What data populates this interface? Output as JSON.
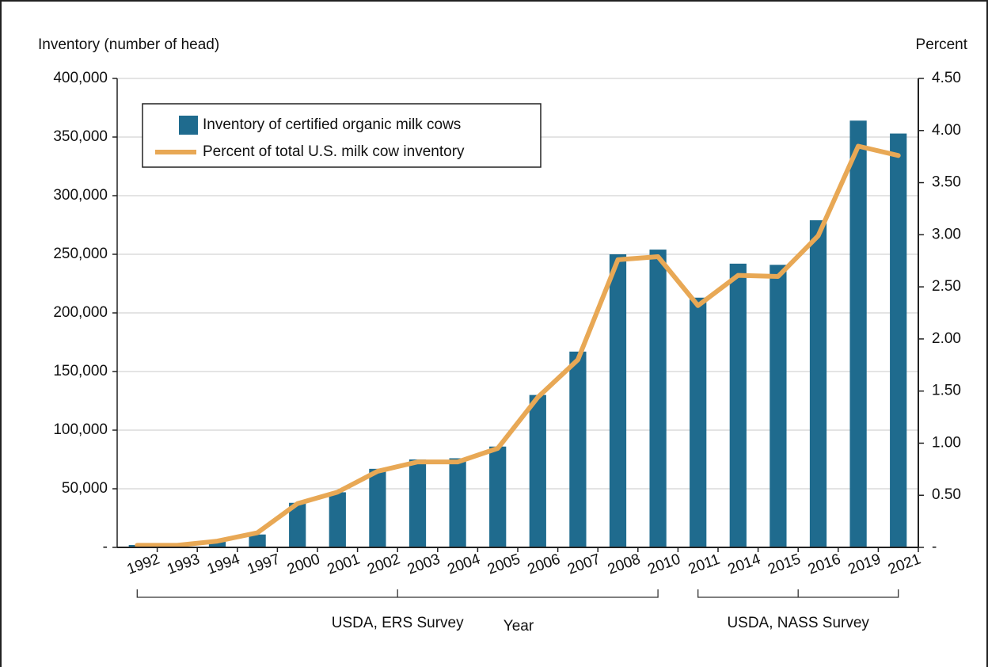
{
  "chart_data": {
    "type": "bar",
    "x_label": "Year",
    "y_label": "Inventory (number of head)",
    "y2_label": "Percent",
    "categories": [
      "1992",
      "1993",
      "1994",
      "1997",
      "2000",
      "2001",
      "2002",
      "2003",
      "2004",
      "2005",
      "2006",
      "2007",
      "2008",
      "2010",
      "2011",
      "2014",
      "2015",
      "2016",
      "2019",
      "2021"
    ],
    "series": [
      {
        "name": "Inventory of certified organic milk cows",
        "type": "bar",
        "color": "#1f6b8e",
        "values": [
          2000,
          2000,
          5000,
          11000,
          38000,
          47000,
          67000,
          75000,
          76000,
          86000,
          130000,
          167000,
          250000,
          254000,
          213000,
          242000,
          241000,
          279000,
          364000,
          353000
        ]
      },
      {
        "name": "Percent of total U.S. milk cow inventory",
        "type": "line",
        "axis": "y2",
        "color": "#e8a855",
        "values": [
          0.02,
          0.02,
          0.06,
          0.14,
          0.42,
          0.53,
          0.73,
          0.82,
          0.82,
          0.95,
          1.44,
          1.8,
          2.76,
          2.79,
          2.32,
          2.61,
          2.6,
          2.99,
          3.85,
          3.76
        ]
      }
    ],
    "ylim": [
      0,
      400000
    ],
    "yticks": [
      {
        "value": 0,
        "label": "-"
      },
      {
        "value": 50000,
        "label": "50,000"
      },
      {
        "value": 100000,
        "label": "100,000"
      },
      {
        "value": 150000,
        "label": "150,000"
      },
      {
        "value": 200000,
        "label": "200,000"
      },
      {
        "value": 250000,
        "label": "250,000"
      },
      {
        "value": 300000,
        "label": "300,000"
      },
      {
        "value": 350000,
        "label": "350,000"
      },
      {
        "value": 400000,
        "label": "400,000"
      }
    ],
    "y2lim": [
      0,
      4.5
    ],
    "y2ticks": [
      {
        "value": 0,
        "label": "-"
      },
      {
        "value": 0.5,
        "label": "0.50"
      },
      {
        "value": 1,
        "label": "1.00"
      },
      {
        "value": 1.5,
        "label": "1.50"
      },
      {
        "value": 2,
        "label": "2.00"
      },
      {
        "value": 2.5,
        "label": "2.50"
      },
      {
        "value": 3,
        "label": "3.00"
      },
      {
        "value": 3.5,
        "label": "3.50"
      },
      {
        "value": 4,
        "label": "4.00"
      },
      {
        "value": 4.5,
        "label": "4.50"
      }
    ],
    "grid": true,
    "legend": "upper left",
    "annotations": [
      "USDA, ERS Survey",
      "USDA, NASS Survey"
    ]
  }
}
